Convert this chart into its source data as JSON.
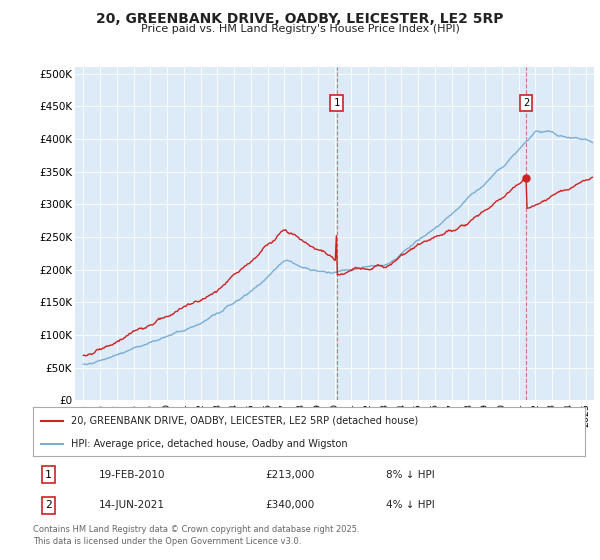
{
  "title": "20, GREENBANK DRIVE, OADBY, LEICESTER, LE2 5RP",
  "subtitle": "Price paid vs. HM Land Registry's House Price Index (HPI)",
  "ylabel_ticks": [
    "£0",
    "£50K",
    "£100K",
    "£150K",
    "£200K",
    "£250K",
    "£300K",
    "£350K",
    "£400K",
    "£450K",
    "£500K"
  ],
  "ytick_values": [
    0,
    50000,
    100000,
    150000,
    200000,
    250000,
    300000,
    350000,
    400000,
    450000,
    500000
  ],
  "ylim": [
    0,
    510000
  ],
  "xlim_start": 1994.5,
  "xlim_end": 2025.5,
  "hpi_color": "#7aaed4",
  "price_color": "#cc2222",
  "plot_bg": "#ddeaf7",
  "transaction1_year": 2010.12,
  "transaction1_price": 213000,
  "transaction2_year": 2021.45,
  "transaction2_price": 340000,
  "legend_property": "20, GREENBANK DRIVE, OADBY, LEICESTER, LE2 5RP (detached house)",
  "legend_hpi": "HPI: Average price, detached house, Oadby and Wigston",
  "table_row1": [
    "1",
    "19-FEB-2010",
    "£213,000",
    "8% ↓ HPI"
  ],
  "table_row2": [
    "2",
    "14-JUN-2021",
    "£340,000",
    "4% ↓ HPI"
  ],
  "footer": "Contains HM Land Registry data © Crown copyright and database right 2025.\nThis data is licensed under the Open Government Licence v3.0.",
  "xtick_years": [
    1995,
    1996,
    1997,
    1998,
    1999,
    2000,
    2001,
    2002,
    2003,
    2004,
    2005,
    2006,
    2007,
    2008,
    2009,
    2010,
    2011,
    2012,
    2013,
    2014,
    2015,
    2016,
    2017,
    2018,
    2019,
    2020,
    2021,
    2022,
    2023,
    2024,
    2025
  ]
}
